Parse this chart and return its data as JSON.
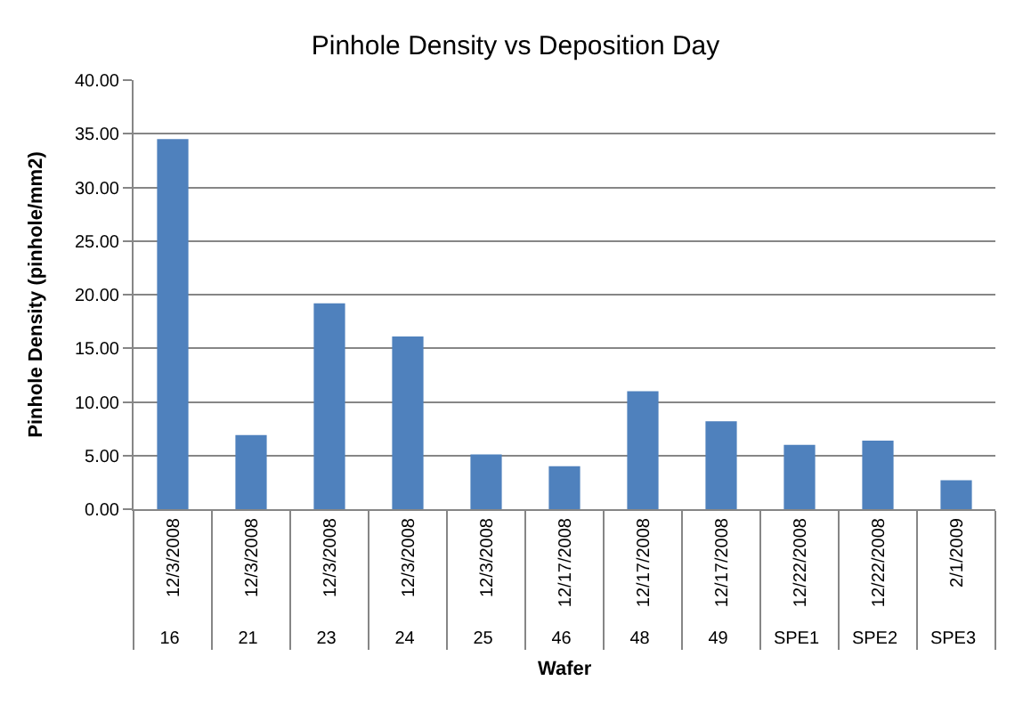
{
  "chart_data": {
    "type": "bar",
    "title": "Pinhole Density vs Deposition Day",
    "annotations": [
      "Wafer"
    ],
    "ylabel": "Pinhole Density (pinhole/mm2)",
    "categories": [
      [
        "12/3/2008",
        "16"
      ],
      [
        "12/3/2008",
        "21"
      ],
      [
        "12/3/2008",
        "23"
      ],
      [
        "12/3/2008",
        "24"
      ],
      [
        "12/3/2008",
        "25"
      ],
      [
        "12/17/2008",
        "46"
      ],
      [
        "12/17/2008",
        "48"
      ],
      [
        "12/17/2008",
        "49"
      ],
      [
        "12/22/2008",
        "SPE1"
      ],
      [
        "12/22/2008",
        "SPE2"
      ],
      [
        "2/1/2009",
        "SPE3"
      ]
    ],
    "values": [
      34.5,
      6.9,
      19.2,
      16.1,
      5.1,
      4.0,
      11.0,
      8.2,
      6.0,
      6.4,
      2.7
    ],
    "color": "#4f81bd",
    "ylim": [
      0,
      40
    ],
    "yticks": [
      {
        "value": 0,
        "label": "0.00"
      },
      {
        "value": 5,
        "label": "5.00"
      },
      {
        "value": 10,
        "label": "10.00"
      },
      {
        "value": 15,
        "label": "15.00"
      },
      {
        "value": 20,
        "label": "20.00"
      },
      {
        "value": 25,
        "label": "25.00"
      },
      {
        "value": 30,
        "label": "30.00"
      },
      {
        "value": 35,
        "label": "35.00"
      },
      {
        "value": 40,
        "label": "40.00"
      }
    ],
    "grid": "y",
    "legend": false
  }
}
